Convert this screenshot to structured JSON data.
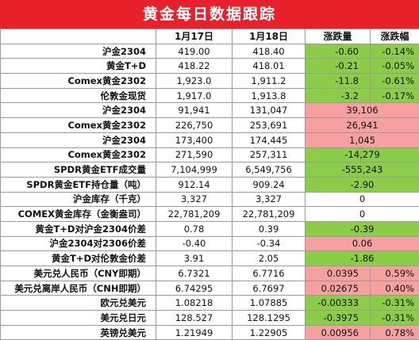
{
  "title": "黄金每日数据跟踪",
  "colors": {
    "title_bg": "#e8202a",
    "up": "#f6a0a0",
    "down": "#8ccd48"
  },
  "headers": [
    "",
    "1月17日",
    "1月18日",
    "涨跌量",
    "涨跌幅"
  ],
  "rows": [
    {
      "label": "沪金2304",
      "d1": "419.00",
      "d2": "418.40",
      "chg": "-0.60",
      "pct": "-0.14%",
      "color": "green"
    },
    {
      "label": "黄金T+D",
      "d1": "418.22",
      "d2": "418.01",
      "chg": "-0.21",
      "pct": "-0.05%",
      "color": "green"
    },
    {
      "label": "Comex黄金2302",
      "d1": "1,923.0",
      "d2": "1,911.2",
      "chg": "-11.8",
      "pct": "-0.61%",
      "color": "green"
    },
    {
      "label": "伦敦金现货",
      "d1": "1,917.0",
      "d2": "1,913.8",
      "chg": "-3.2",
      "pct": "-0.17%",
      "color": "green"
    },
    {
      "label": "沪金2304",
      "d1": "91,941",
      "d2": "131,047",
      "chg": "39,106",
      "pct": "",
      "color": "red",
      "merged": true
    },
    {
      "label": "Comex黄金2302",
      "d1": "226,750",
      "d2": "253,691",
      "chg": "26,941",
      "pct": "",
      "color": "red",
      "merged": true
    },
    {
      "label": "沪金2304",
      "d1": "173,400",
      "d2": "174,445",
      "chg": "1,045",
      "pct": "",
      "color": "red",
      "merged": true
    },
    {
      "label": "Comex黄金2302",
      "d1": "271,590",
      "d2": "257,311",
      "chg": "-14,279",
      "pct": "",
      "color": "green",
      "merged": true
    },
    {
      "label": "SPDR黄金ETF成交量",
      "d1": "7,104,999",
      "d2": "6,549,756",
      "chg": "-555,243",
      "pct": "",
      "color": "green",
      "merged": true
    },
    {
      "label": "SPDR黄金ETF持仓量（吨）",
      "d1": "912.14",
      "d2": "909.24",
      "chg": "-2.90",
      "pct": "",
      "color": "green",
      "merged": true
    },
    {
      "label": "沪金库存（千克）",
      "d1": "3,327",
      "d2": "3,327",
      "chg": "0",
      "pct": "",
      "color": "none",
      "merged": true
    },
    {
      "label": "COMEX黄金库存（金衡盎司）",
      "d1": "22,781,209",
      "d2": "22,781,209",
      "chg": "0",
      "pct": "",
      "color": "none",
      "merged": true
    },
    {
      "label": "黄金T+D对沪金2304价差",
      "d1": "0.78",
      "d2": "0.39",
      "chg": "-0.39",
      "pct": "",
      "color": "green",
      "merged": true
    },
    {
      "label": "沪金2304对2306价差",
      "d1": "-0.40",
      "d2": "-0.34",
      "chg": "0.06",
      "pct": "",
      "color": "red",
      "merged": true
    },
    {
      "label": "黄金T+D对伦敦金价差",
      "d1": "3.91",
      "d2": "2.05",
      "chg": "-1.86",
      "pct": "",
      "color": "green",
      "merged": true
    },
    {
      "label": "美元兑人民币（CNY即期）",
      "d1": "6.7321",
      "d2": "6.7716",
      "chg": "0.0395",
      "pct": "0.59%",
      "color": "red"
    },
    {
      "label": "美元兑离岸人民币（CNH即期）",
      "d1": "6.74295",
      "d2": "6.7697",
      "chg": "0.02675",
      "pct": "0.40%",
      "color": "red"
    },
    {
      "label": "欧元兑美元",
      "d1": "1.08218",
      "d2": "1.07885",
      "chg": "-0.00333",
      "pct": "-0.31%",
      "color": "green"
    },
    {
      "label": "美元兑日元",
      "d1": "128.527",
      "d2": "128.1295",
      "chg": "-0.3975",
      "pct": "-0.31%",
      "color": "green"
    },
    {
      "label": "英镑兑美元",
      "d1": "1.21949",
      "d2": "1.22905",
      "chg": "0.00956",
      "pct": "0.78%",
      "color": "red"
    }
  ]
}
